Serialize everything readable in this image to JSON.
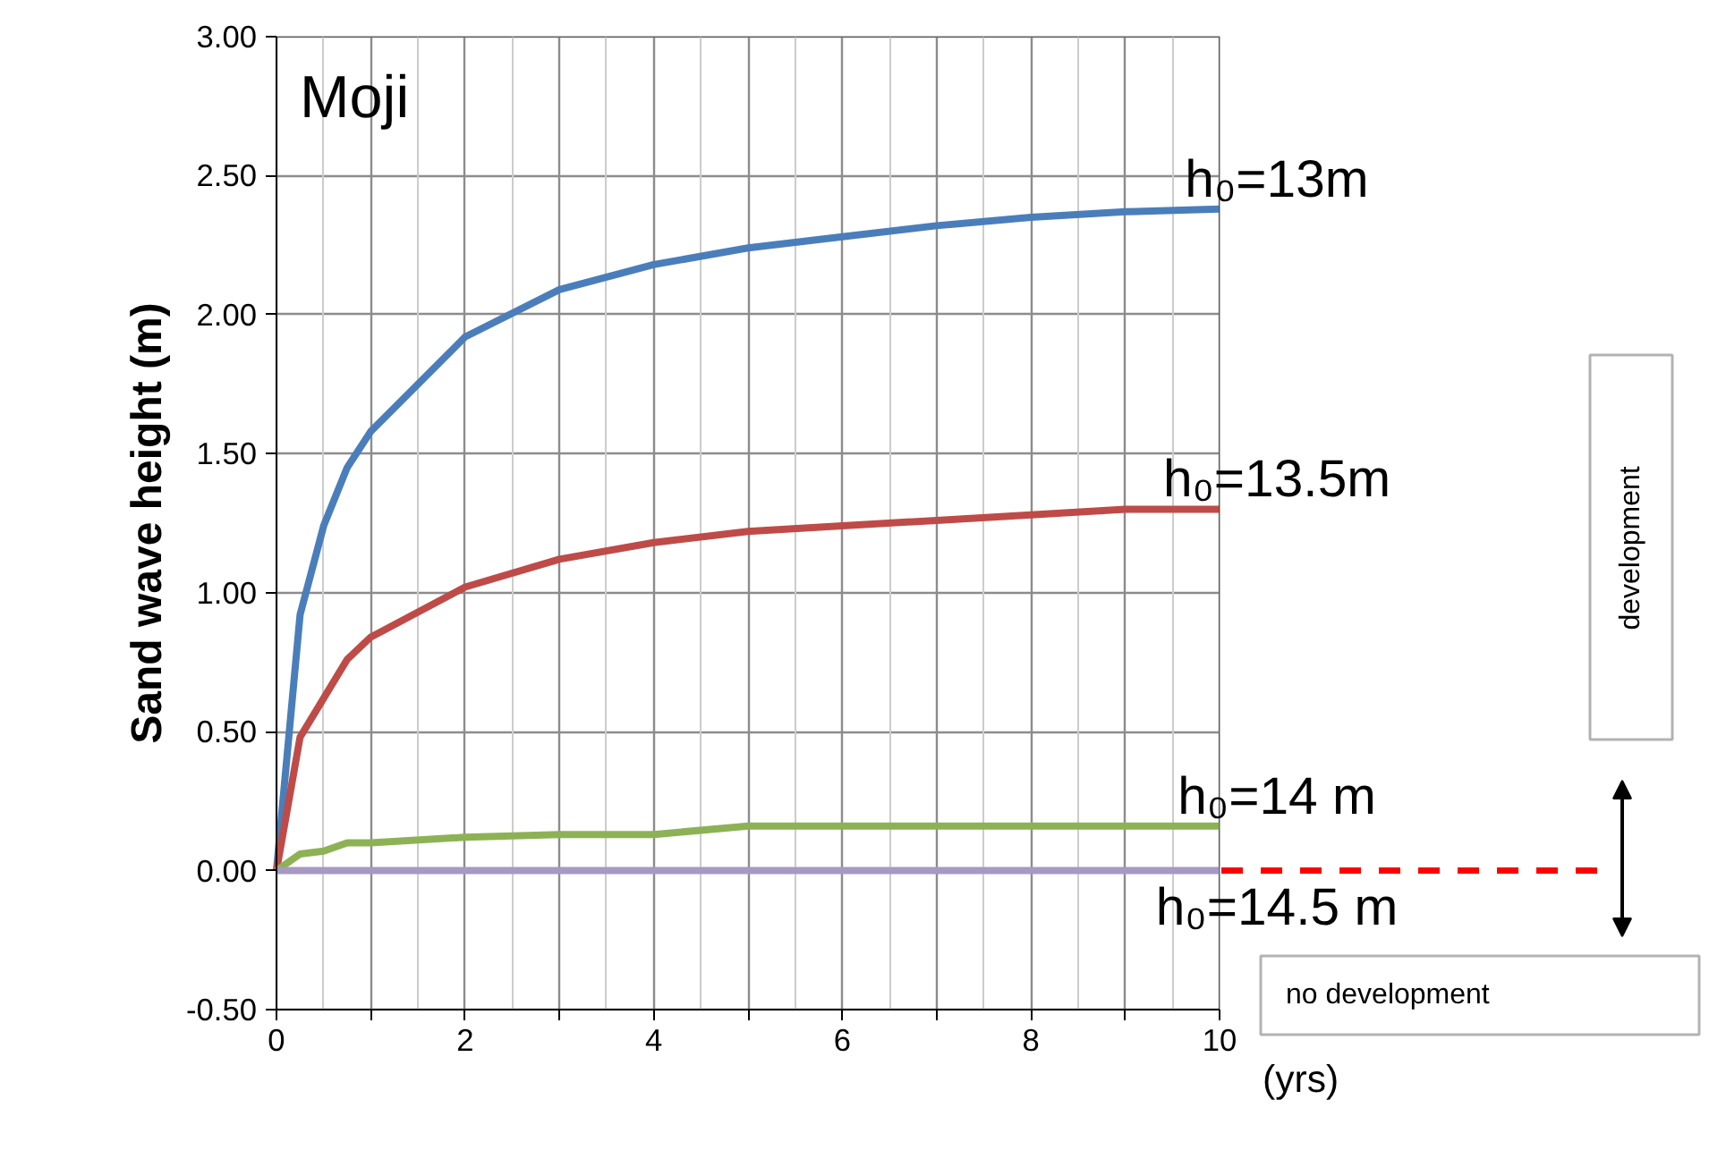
{
  "chart_data": {
    "type": "line",
    "ylabel": "Sand wave height (m)",
    "xlabel": "(yrs)",
    "x": [
      0,
      0.25,
      0.5,
      0.75,
      1,
      2,
      3,
      4,
      5,
      6,
      7,
      8,
      9,
      10
    ],
    "series": [
      {
        "name": "h₀=13m",
        "color": "#4a7ebb",
        "values": [
          0,
          0.92,
          1.24,
          1.45,
          1.58,
          1.92,
          2.09,
          2.18,
          2.24,
          2.28,
          2.32,
          2.35,
          2.37,
          2.38
        ]
      },
      {
        "name": "h₀=13.5m",
        "color": "#be4b48",
        "values": [
          0,
          0.48,
          0.62,
          0.76,
          0.84,
          1.02,
          1.12,
          1.18,
          1.22,
          1.24,
          1.26,
          1.28,
          1.3,
          1.3
        ]
      },
      {
        "name": "h₀=14 m",
        "color": "#8db255",
        "values": [
          0,
          0.06,
          0.07,
          0.1,
          0.1,
          0.12,
          0.13,
          0.13,
          0.16,
          0.16,
          0.16,
          0.16,
          0.16,
          0.16
        ]
      },
      {
        "name": "h₀=14.5 m",
        "color": "#a699c2",
        "values": [
          0,
          0,
          0,
          0,
          0,
          0,
          0,
          0,
          0,
          0,
          0,
          0,
          0,
          0
        ]
      }
    ],
    "xlim": [
      0,
      10
    ],
    "ylim": [
      -0.5,
      3.0
    ],
    "xticks": [
      0,
      {
        "value": 1,
        "label": null
      },
      2,
      {
        "value": 3,
        "label": null
      },
      4,
      {
        "value": 5,
        "label": null
      },
      6,
      {
        "value": 7,
        "label": null
      },
      8,
      {
        "value": 9,
        "label": null
      },
      10
    ],
    "yticks": [
      {
        "value": -0.5,
        "label": "-0.50"
      },
      {
        "value": 0,
        "label": "0.00"
      },
      {
        "value": 0.5,
        "label": "0.50"
      },
      {
        "value": 1,
        "label": "1.00"
      },
      {
        "value": 1.5,
        "label": "1.50"
      },
      {
        "value": 2,
        "label": "2.00"
      },
      {
        "value": 2.5,
        "label": "2.50"
      },
      {
        "value": 3,
        "label": "3.00"
      }
    ],
    "grid": true,
    "legend": false,
    "marker": "none",
    "line_style": "solid",
    "ref_lines": [
      {
        "axis": "y",
        "value": 0,
        "color": "#ff0000",
        "line_style": "dashed"
      }
    ],
    "annotations": [
      "Moji",
      "development",
      "no development"
    ]
  }
}
